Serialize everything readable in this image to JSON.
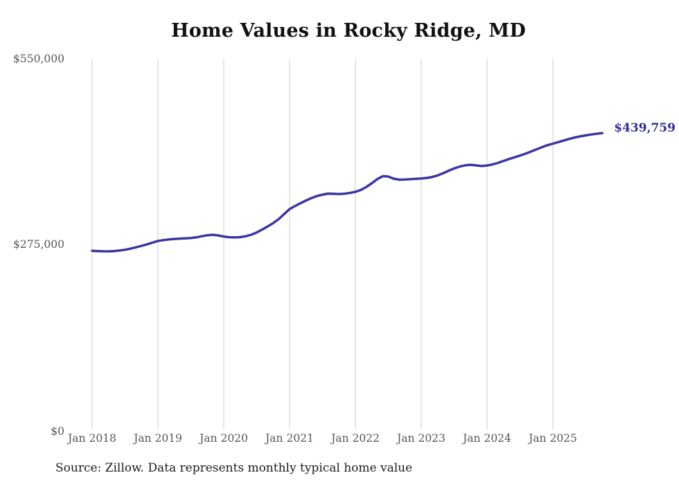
{
  "source_note": "Source: Zillow. Data represents monthly typical home value",
  "colors": {
    "line": "#3d35a2",
    "end_label_text": "#2f2c97",
    "grid": "#cccccc",
    "tick_text": "#555555",
    "title_text": "#111111",
    "background": "#ffffff"
  },
  "chart_data": {
    "type": "line",
    "title": "Home Values in Rocky Ridge, MD",
    "xlabel": "",
    "ylabel": "",
    "ylim": [
      0,
      550000
    ],
    "grid": "vertical-only",
    "legend": "none",
    "x_range": {
      "start": "Jan 2018",
      "end": "Oct 2025",
      "frequency": "monthly"
    },
    "end_label": "$439,759",
    "end_value": 439759,
    "yticks": [
      {
        "label": "$550,000",
        "value": 550000
      },
      {
        "label": "$275,000",
        "value": 275000
      },
      {
        "label": "$0",
        "value": 0
      }
    ],
    "xticks": [
      {
        "label": "Jan 2018",
        "index": 0
      },
      {
        "label": "Jan 2019",
        "index": 12
      },
      {
        "label": "Jan 2020",
        "index": 24
      },
      {
        "label": "Jan 2021",
        "index": 36
      },
      {
        "label": "Jan 2022",
        "index": 48
      },
      {
        "label": "Jan 2023",
        "index": 60
      },
      {
        "label": "Jan 2024",
        "index": 72
      },
      {
        "label": "Jan 2025",
        "index": 84
      }
    ],
    "series": [
      {
        "name": "Typical home value",
        "color": "#3d35a2",
        "values": [
          265000,
          264600,
          264300,
          264200,
          264600,
          265400,
          266600,
          268200,
          270200,
          272400,
          274600,
          277200,
          279600,
          280900,
          281900,
          282600,
          283100,
          283500,
          284000,
          285000,
          286600,
          288200,
          288800,
          287800,
          286200,
          285200,
          284900,
          285300,
          286600,
          288900,
          292300,
          296500,
          301200,
          306200,
          312000,
          319500,
          327000,
          331500,
          335800,
          339800,
          343400,
          346300,
          348400,
          349900,
          349600,
          349200,
          349800,
          351000,
          352600,
          355400,
          359800,
          365500,
          371500,
          375800,
          375200,
          372000,
          370600,
          370800,
          371300,
          371900,
          372400,
          373200,
          374600,
          377000,
          380300,
          384000,
          387400,
          390000,
          391900,
          392700,
          391800,
          391000,
          391700,
          393200,
          395600,
          398500,
          401200,
          403800,
          406500,
          409200,
          412300,
          415600,
          418900,
          421800,
          424100,
          426400,
          428800,
          431200,
          433300,
          435000,
          436400,
          437700,
          438800,
          439759
        ]
      }
    ]
  }
}
